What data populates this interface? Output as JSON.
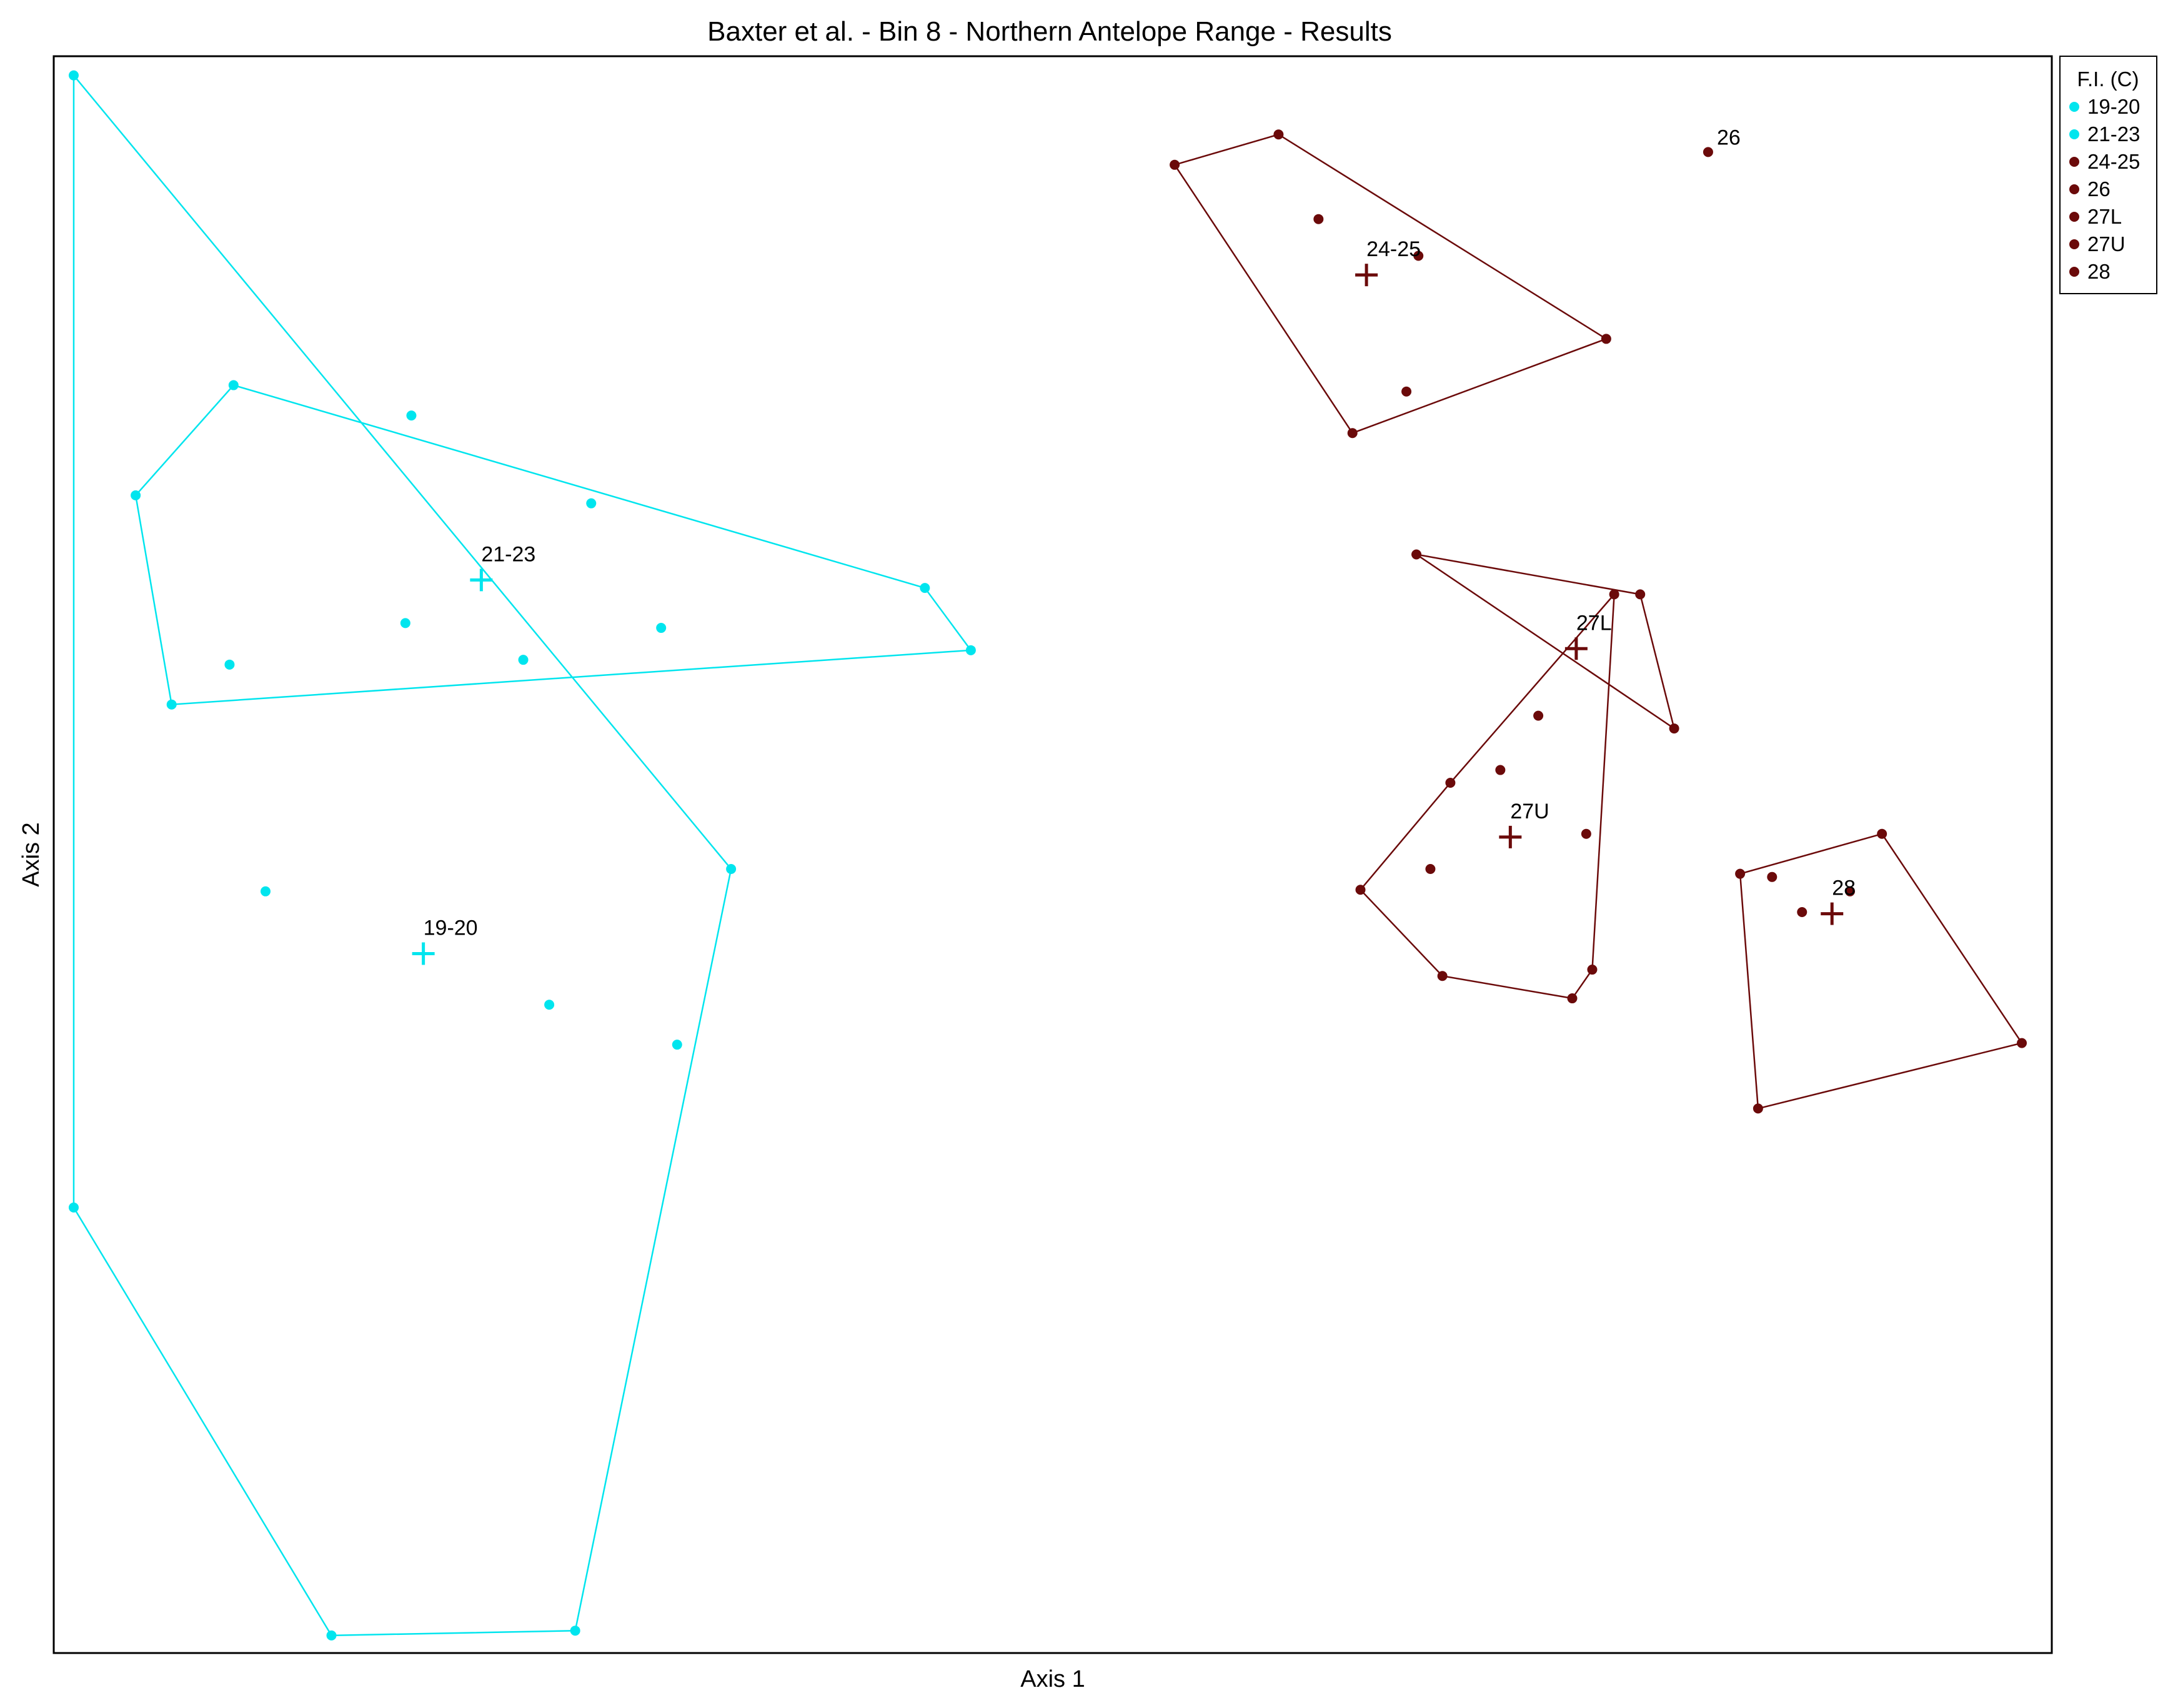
{
  "chart_data": {
    "type": "scatter",
    "title": "Baxter et al. - Bin 8 - Northern Antelope Range - Results",
    "xlabel": "Axis 1",
    "ylabel": "Axis 2",
    "xlim": [
      0,
      100
    ],
    "ylim": [
      0,
      100
    ],
    "grid": false,
    "legend": {
      "title": "F.I. (C)",
      "placement": "outside-top-right",
      "entries": [
        "19-20",
        "21-23",
        "24-25",
        "26",
        "27L",
        "27U",
        "28"
      ]
    },
    "colors": {
      "cyan": "#00E5EE",
      "maroon": "#6B0A0A"
    },
    "series": [
      {
        "name": "19-20",
        "color": "#00E5EE",
        "points": [
          [
            1,
            98.8
          ],
          [
            1,
            27.9
          ],
          [
            13.9,
            1.1
          ],
          [
            26.1,
            1.4
          ],
          [
            33.9,
            49.1
          ],
          [
            23.5,
            62.2
          ],
          [
            10.6,
            47.7
          ],
          [
            24.8,
            40.6
          ],
          [
            31.2,
            38.1
          ]
        ],
        "hull": [
          [
            1,
            98.8
          ],
          [
            33.9,
            49.1
          ],
          [
            26.1,
            1.4
          ],
          [
            13.9,
            1.1
          ],
          [
            1,
            27.9
          ]
        ],
        "centroid": [
          18.5,
          43.8
        ],
        "centroid_label": "19-20"
      },
      {
        "name": "21-23",
        "color": "#00E5EE",
        "points": [
          [
            9,
            79.4
          ],
          [
            4.1,
            72.5
          ],
          [
            5.9,
            59.4
          ],
          [
            17.9,
            77.5
          ],
          [
            26.9,
            72.0
          ],
          [
            43.6,
            66.7
          ],
          [
            45.9,
            62.8
          ],
          [
            8.8,
            61.9
          ],
          [
            17.6,
            64.5
          ],
          [
            30.4,
            64.2
          ]
        ],
        "hull": [
          [
            4.1,
            72.5
          ],
          [
            9,
            79.4
          ],
          [
            43.6,
            66.7
          ],
          [
            45.9,
            62.8
          ],
          [
            5.9,
            59.4
          ]
        ],
        "centroid": [
          21.4,
          67.2
        ],
        "centroid_label": "21-23"
      },
      {
        "name": "24-25",
        "color": "#6B0A0A",
        "points": [
          [
            56.1,
            93.2
          ],
          [
            61.3,
            95.1
          ],
          [
            77.7,
            82.3
          ],
          [
            65,
            76.4
          ],
          [
            63.3,
            89.8
          ],
          [
            68.3,
            87.5
          ],
          [
            67.7,
            79.0
          ]
        ],
        "hull": [
          [
            56.1,
            93.2
          ],
          [
            61.3,
            95.1
          ],
          [
            77.7,
            82.3
          ],
          [
            65,
            76.4
          ]
        ],
        "centroid": [
          65.7,
          86.3
        ],
        "centroid_label": "24-25"
      },
      {
        "name": "26",
        "color": "#6B0A0A",
        "points": [
          [
            82.8,
            94.0
          ]
        ],
        "label": "26"
      },
      {
        "name": "27L",
        "color": "#6B0A0A",
        "points": [
          [
            68.2,
            68.8
          ],
          [
            79.4,
            66.3
          ],
          [
            81.1,
            57.9
          ]
        ],
        "hull": [
          [
            68.2,
            68.8
          ],
          [
            79.4,
            66.3
          ],
          [
            81.1,
            57.9
          ]
        ],
        "centroid": [
          76.2,
          62.9
        ],
        "centroid_label": "27L"
      },
      {
        "name": "27U",
        "color": "#6B0A0A",
        "points": [
          [
            78.1,
            66.3
          ],
          [
            69.9,
            54.5
          ],
          [
            65.4,
            47.8
          ],
          [
            69.5,
            42.4
          ],
          [
            76,
            41
          ],
          [
            77,
            42.8
          ],
          [
            74.3,
            58.7
          ],
          [
            72.4,
            55.3
          ],
          [
            76.7,
            51.3
          ],
          [
            68.9,
            49.1
          ]
        ],
        "hull": [
          [
            78.1,
            66.3
          ],
          [
            77,
            42.8
          ],
          [
            76,
            41
          ],
          [
            69.5,
            42.4
          ],
          [
            65.4,
            47.8
          ],
          [
            69.9,
            54.5
          ]
        ],
        "centroid": [
          72.9,
          51.1
        ],
        "centroid_label": "27U"
      },
      {
        "name": "28",
        "color": "#6B0A0A",
        "points": [
          [
            84.4,
            48.8
          ],
          [
            91.5,
            51.3
          ],
          [
            98.5,
            38.2
          ],
          [
            85.3,
            34.1
          ],
          [
            86,
            48.6
          ],
          [
            87.5,
            46.4
          ],
          [
            89.9,
            47.7
          ]
        ],
        "hull": [
          [
            84.4,
            48.8
          ],
          [
            91.5,
            51.3
          ],
          [
            98.5,
            38.2
          ],
          [
            85.3,
            34.1
          ]
        ],
        "centroid": [
          89,
          46.3
        ],
        "centroid_label": "28"
      }
    ]
  }
}
